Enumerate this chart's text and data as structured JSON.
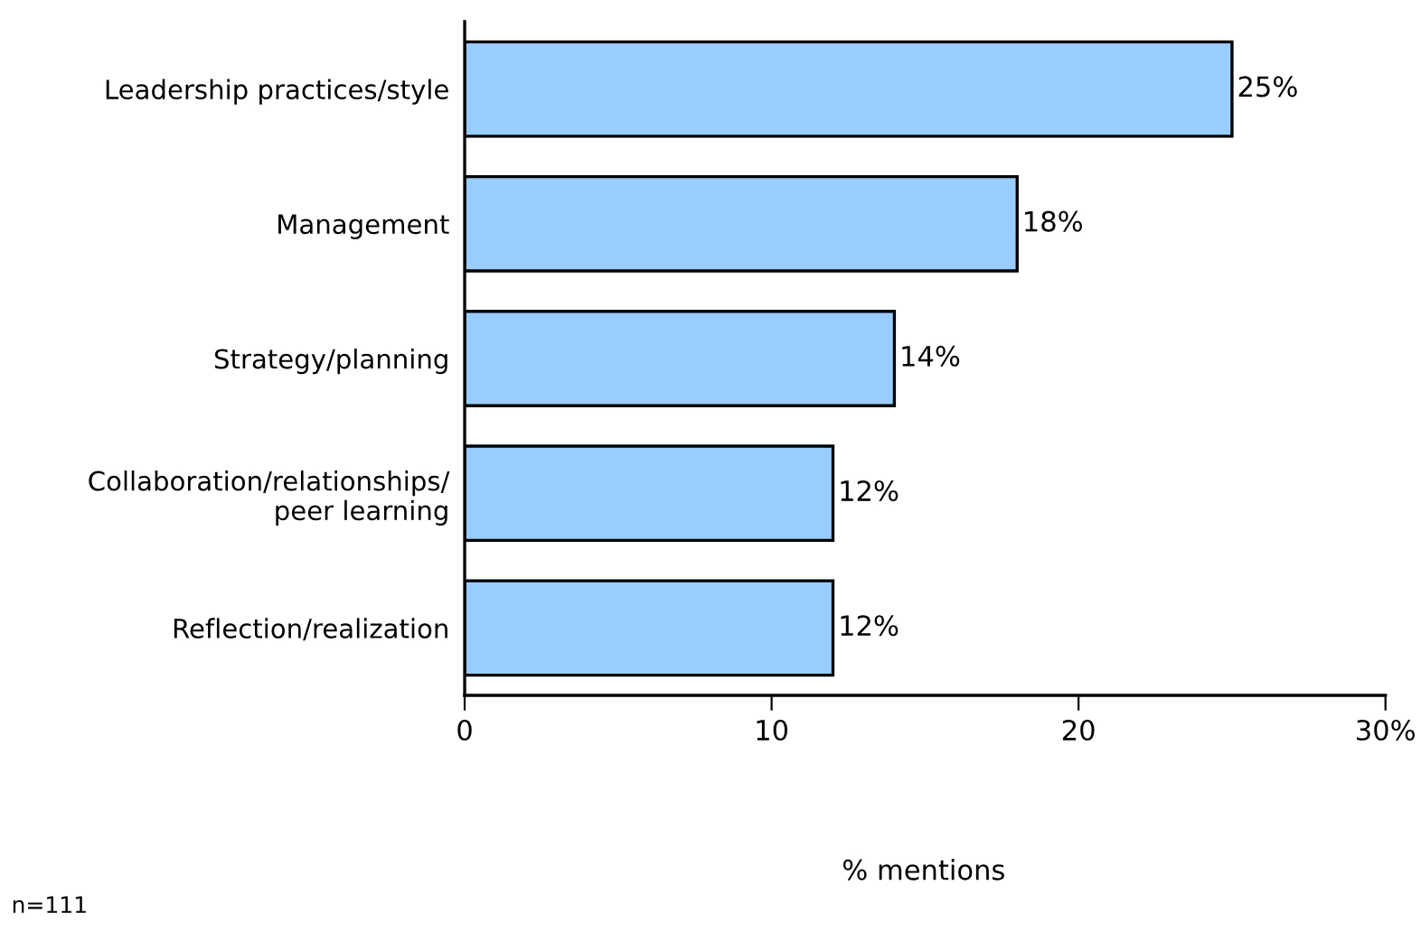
{
  "chart_data": {
    "type": "bar",
    "orientation": "horizontal",
    "categories": [
      "Leadership practices/style",
      "Management",
      "Strategy/planning",
      "Collaboration/relationships/\npeer learning",
      "Reflection/realization"
    ],
    "values": [
      25,
      18,
      14,
      12,
      12
    ],
    "value_labels": [
      "25%",
      "18%",
      "14%",
      "12%",
      "12%"
    ],
    "color": "#99ccff",
    "xlim": [
      0,
      30
    ],
    "xticks": [
      0,
      10,
      20,
      {
        "value": 30,
        "label": "30%"
      }
    ],
    "grid": false,
    "annotations": [
      "% mentions",
      "n=111"
    ]
  }
}
